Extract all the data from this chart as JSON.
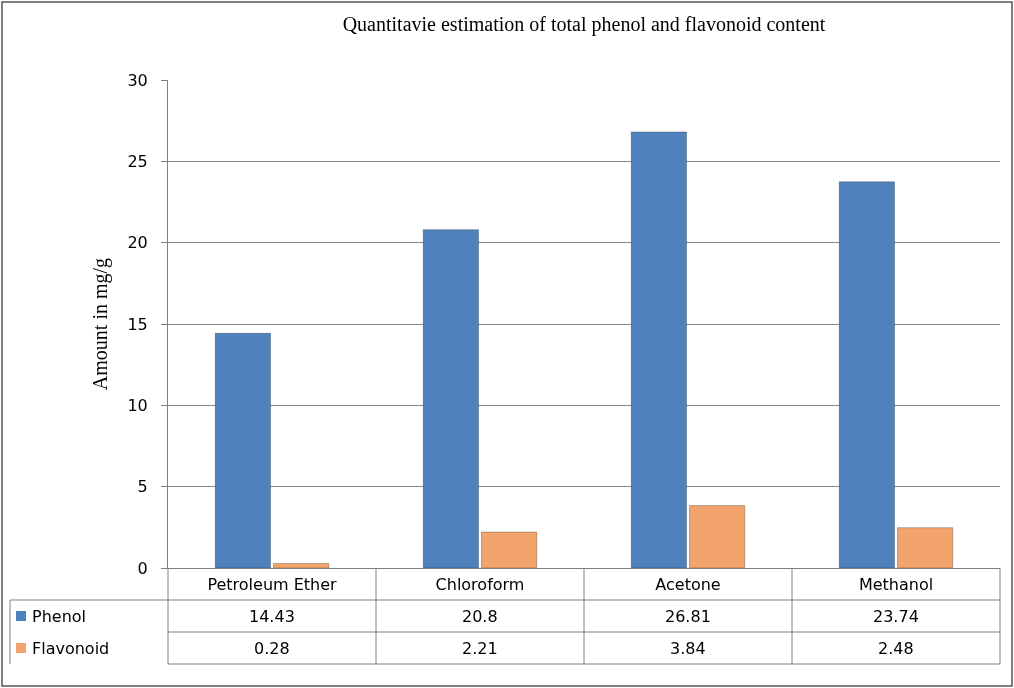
{
  "chart_data": {
    "type": "bar",
    "title": "Quantitavie estimation of total phenol and flavonoid content",
    "ylabel": "Amount in mg/g",
    "categories": [
      "Petroleum Ether",
      "Chloroform",
      "Acetone",
      "Methanol"
    ],
    "series": [
      {
        "name": "Phenol",
        "color": "#4f81bd",
        "values": [
          14.43,
          20.8,
          26.81,
          23.74
        ]
      },
      {
        "name": "Flavonoid",
        "color": "#f2a46c",
        "values": [
          0.28,
          2.21,
          3.84,
          2.48
        ]
      }
    ],
    "ylim": [
      0,
      30
    ],
    "yticks": [
      0,
      5,
      10,
      15,
      20,
      25,
      30
    ],
    "grid": "y",
    "legend": "bottom",
    "data_labels": true
  }
}
